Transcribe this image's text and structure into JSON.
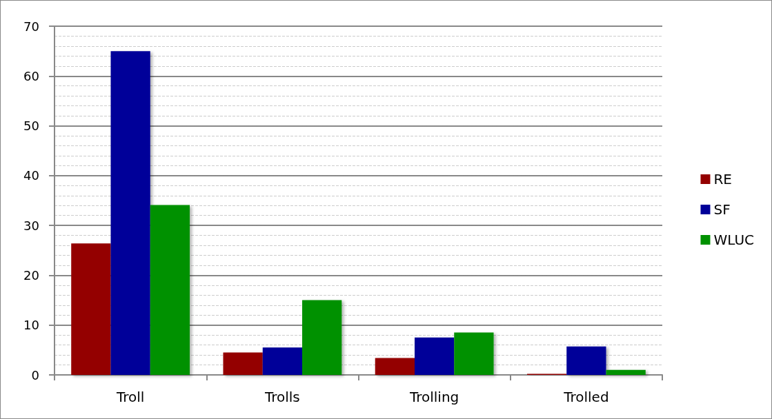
{
  "chart_data": {
    "type": "bar",
    "categories": [
      "Troll",
      "Trolls",
      "Trolling",
      "Trolled"
    ],
    "series": [
      {
        "name": "RE",
        "color": "#940000",
        "values": [
          26.4,
          4.5,
          3.4,
          0.2
        ]
      },
      {
        "name": "SF",
        "color": "#000099",
        "values": [
          65,
          5.5,
          7.5,
          5.7
        ]
      },
      {
        "name": "WLUC",
        "color": "#009100",
        "values": [
          34.1,
          15,
          8.5,
          1
        ]
      }
    ],
    "ylim": [
      0,
      70
    ],
    "yticks": [
      0,
      10,
      20,
      30,
      40,
      50,
      60,
      70
    ],
    "grid": "y",
    "legend": "right"
  }
}
